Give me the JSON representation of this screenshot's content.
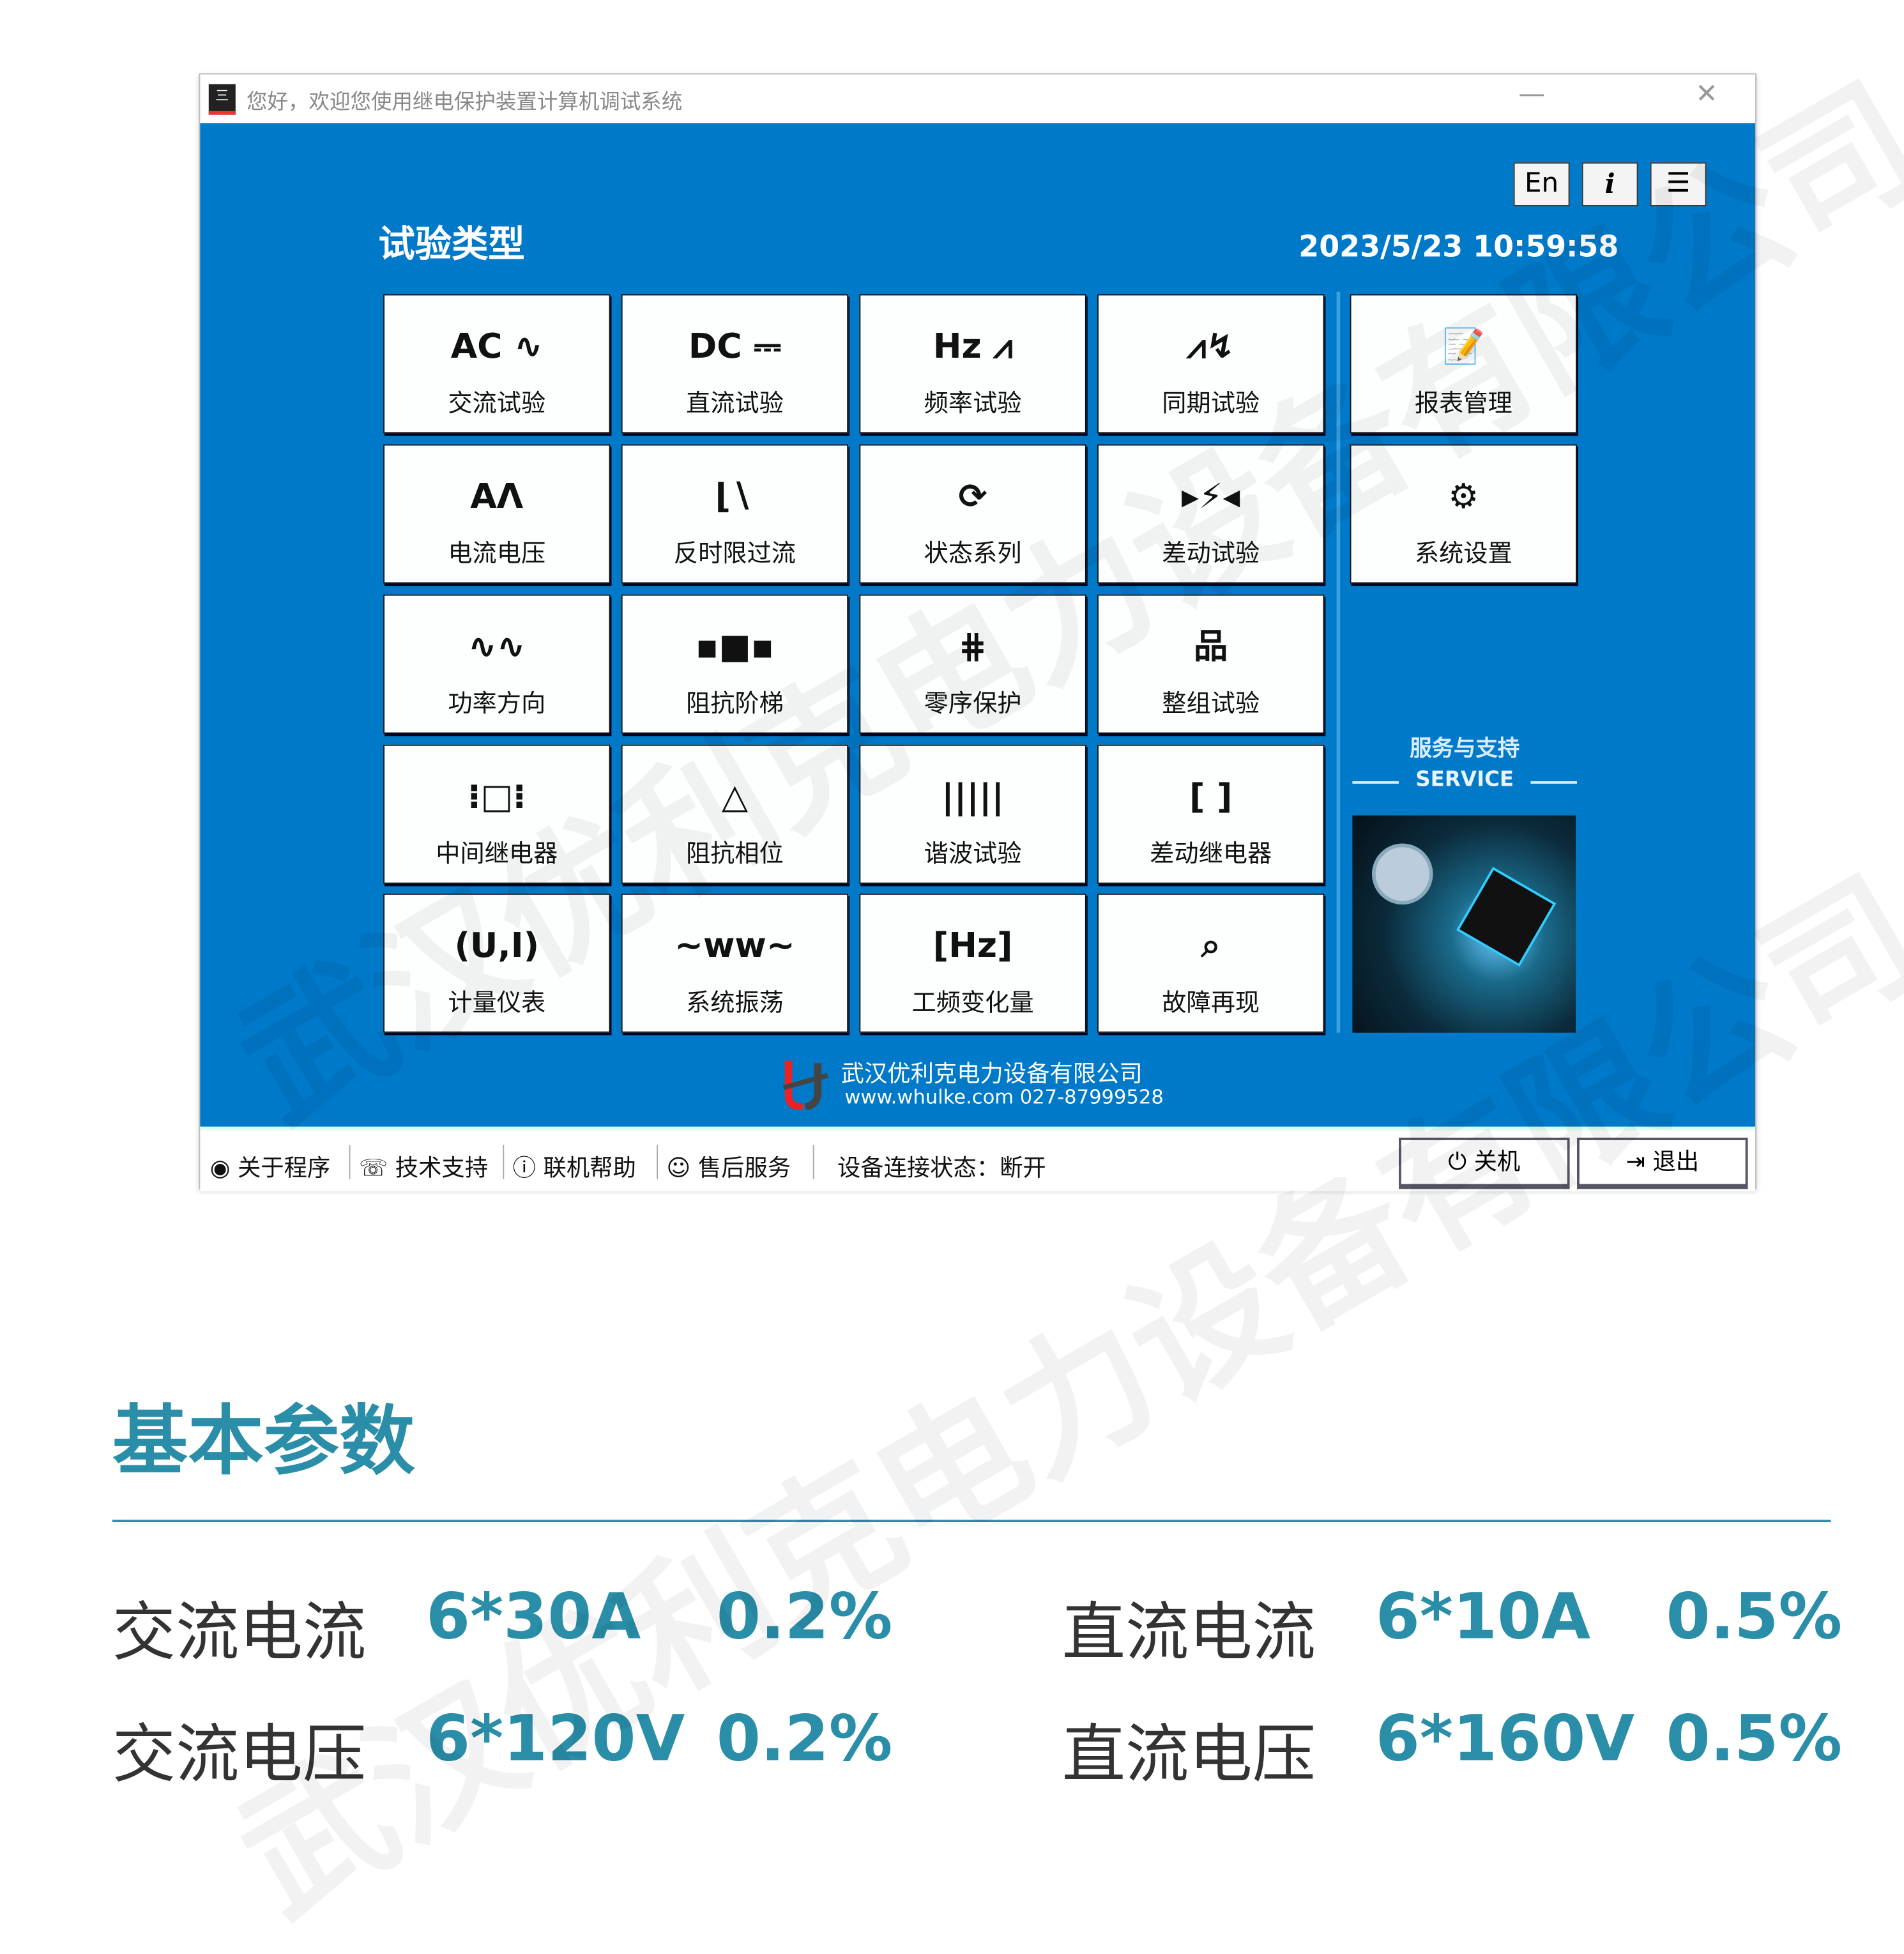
{
  "window": {
    "title": "您好，欢迎您使用继电保护装置计算机调试系统",
    "minimize": "—",
    "close": "✕"
  },
  "header": {
    "title": "试验类型",
    "datetime": "2023/5/23 10:59:58",
    "buttons": [
      "En",
      "i",
      "☰"
    ]
  },
  "tiles": [
    {
      "icon": "AC ∿",
      "label": "交流试验",
      "name": "ac-test"
    },
    {
      "icon": "DC ⎓",
      "label": "直流试验",
      "name": "dc-test"
    },
    {
      "icon": "Hz ⩘",
      "label": "频率试验",
      "name": "frequency-test"
    },
    {
      "icon": "⩘↯",
      "label": "同期试验",
      "name": "synchronization-test"
    },
    {
      "icon": "📝",
      "label": "报表管理",
      "name": "report-management"
    },
    {
      "icon": "AΛ",
      "label": "电流电压",
      "name": "current-voltage"
    },
    {
      "icon": "⌊∖",
      "label": "反时限过流",
      "name": "inverse-time-overcurrent"
    },
    {
      "icon": "⟳",
      "label": "状态系列",
      "name": "state-sequence"
    },
    {
      "icon": "▸⚡◂",
      "label": "差动试验",
      "name": "differential-test"
    },
    {
      "icon": "⚙",
      "label": "系统设置",
      "name": "system-settings"
    },
    {
      "icon": "∿∿",
      "label": "功率方向",
      "name": "power-direction"
    },
    {
      "icon": "▪■▪",
      "label": "阻抗阶梯",
      "name": "impedance-ladder"
    },
    {
      "icon": "⋕",
      "label": "零序保护",
      "name": "zero-sequence-protection"
    },
    {
      "icon": "品",
      "label": "整组试验",
      "name": "whole-group-test"
    },
    {
      "icon": "⁝□⁝",
      "label": "中间继电器",
      "name": "intermediate-relay"
    },
    {
      "icon": "△",
      "label": "阻抗相位",
      "name": "impedance-phase"
    },
    {
      "icon": "|||||",
      "label": "谐波试验",
      "name": "harmonic-test"
    },
    {
      "icon": "[ ]",
      "label": "差动继电器",
      "name": "differential-relay"
    },
    {
      "icon": "(U,I)",
      "label": "计量仪表",
      "name": "metering-instrument"
    },
    {
      "icon": "~ww~",
      "label": "系统振荡",
      "name": "system-oscillation"
    },
    {
      "icon": "[Hz]",
      "label": "工频变化量",
      "name": "power-frequency-variation"
    },
    {
      "icon": "⌕",
      "label": "故障再现",
      "name": "fault-reproduction"
    }
  ],
  "service": {
    "title": "服务与支持",
    "subtitle": "SERVICE"
  },
  "company": {
    "name": "武汉优利克电力设备有限公司",
    "contact": "www.whulke.com 027-87999528"
  },
  "statusbar": {
    "items": [
      {
        "icon": "◉",
        "label": "关于程序"
      },
      {
        "icon": "☏",
        "label": "技术支持"
      },
      {
        "icon": "ⓘ",
        "label": "联机帮助"
      },
      {
        "icon": "☺",
        "label": "售后服务"
      }
    ],
    "connection": "设备连接状态：断开",
    "shutdown": "关机",
    "exit": "退出"
  },
  "params": {
    "title": "基本参数",
    "rows": [
      {
        "label": "交流电流",
        "value": "6*30A",
        "accuracy": "0.2%"
      },
      {
        "label": "直流电流",
        "value": "6*10A",
        "accuracy": "0.5%"
      },
      {
        "label": "交流电压",
        "value": "6*120V",
        "accuracy": "0.2%"
      },
      {
        "label": "直流电压",
        "value": "6*160V",
        "accuracy": "0.5%"
      }
    ]
  },
  "watermark": "武汉优利克电力设备有限公司",
  "colors": {
    "accent": "#0079c8",
    "teal": "#2a8ea8"
  }
}
